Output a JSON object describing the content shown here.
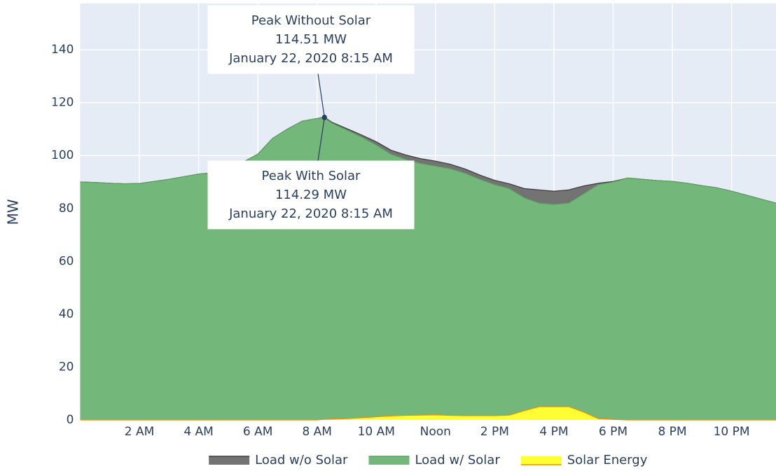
{
  "chart_data": {
    "type": "area",
    "y_axis_label": "MW",
    "x": [
      0,
      0.5,
      1,
      1.5,
      2,
      2.5,
      3,
      3.5,
      4,
      4.5,
      5,
      5.5,
      6,
      6.5,
      7,
      7.5,
      8,
      8.25,
      8.5,
      9,
      9.5,
      10,
      10.5,
      11,
      11.5,
      12,
      12.5,
      13,
      13.5,
      14,
      14.5,
      15,
      15.5,
      16,
      16.5,
      17,
      17.5,
      18,
      18.5,
      19,
      19.5,
      20,
      20.5,
      21,
      21.5,
      22,
      22.5,
      23,
      23.5
    ],
    "series": [
      {
        "name": "Load w/o Solar",
        "color": "#737373",
        "line_color": "#3a3a3a",
        "values": [
          90,
          89.8,
          89.5,
          89.3,
          89.4,
          90.2,
          91,
          92,
          93,
          93.5,
          95,
          97.5,
          100.5,
          106.5,
          110,
          113,
          114,
          114.51,
          112.6,
          110.2,
          107.8,
          105.2,
          102,
          100.2,
          98.8,
          97.9,
          96.7,
          94.9,
          92.6,
          90.6,
          89.3,
          87.5,
          87,
          86.5,
          87,
          88.5,
          89.5,
          90.2,
          91.5,
          91,
          90.5,
          90.2,
          89.5,
          88.6,
          87.8,
          86.5,
          85,
          83.5,
          82
        ]
      },
      {
        "name": "Load w/ Solar",
        "color": "#73b77a",
        "line_color": "#5a9e60",
        "values": [
          90,
          89.8,
          89.5,
          89.3,
          89.4,
          90.2,
          91,
          92,
          93,
          93.5,
          95,
          97.5,
          100.5,
          106.5,
          110,
          113,
          114,
          114.29,
          112.3,
          109.7,
          107,
          104,
          100.5,
          98.5,
          97,
          96,
          95,
          93.3,
          91,
          89,
          87.5,
          84,
          82,
          81.5,
          82,
          85.5,
          89,
          90,
          91.5,
          91,
          90.5,
          90.2,
          89.5,
          88.6,
          87.8,
          86.5,
          85,
          83.5,
          82
        ]
      },
      {
        "name": "Solar Energy",
        "color": "#ffff33",
        "line_color": "#f08c00",
        "values": [
          0,
          0,
          0,
          0,
          0,
          0,
          0,
          0,
          0,
          0,
          0,
          0,
          0,
          0,
          0,
          0,
          0,
          0.22,
          0.3,
          0.5,
          0.8,
          1.2,
          1.5,
          1.7,
          1.8,
          1.9,
          1.7,
          1.6,
          1.6,
          1.6,
          1.8,
          3.5,
          5,
          5,
          5,
          3,
          0.5,
          0.2,
          0,
          0,
          0,
          0,
          0,
          0,
          0,
          0,
          0,
          0,
          0
        ]
      }
    ],
    "xlim": [
      0,
      23.5
    ],
    "xticks": [
      {
        "value": 2,
        "label": "2 AM"
      },
      {
        "value": 4,
        "label": "4 AM"
      },
      {
        "value": 6,
        "label": "6 AM"
      },
      {
        "value": 8,
        "label": "8 AM"
      },
      {
        "value": 10,
        "label": "10 AM"
      },
      {
        "value": 12,
        "label": "Noon"
      },
      {
        "value": 14,
        "label": "2 PM"
      },
      {
        "value": 16,
        "label": "4 PM"
      },
      {
        "value": 18,
        "label": "6 PM"
      },
      {
        "value": 20,
        "label": "8 PM"
      },
      {
        "value": 22,
        "label": "10 PM"
      }
    ],
    "ylim": [
      0,
      157.5
    ],
    "yticks": [
      0,
      20,
      40,
      60,
      80,
      100,
      120,
      140
    ],
    "grid": true,
    "legend_position": "bottom",
    "annotations": [
      {
        "x": 8.25,
        "y": 114.51,
        "text_lines": [
          "Peak Without Solar",
          "114.51 MW",
          "January 22, 2020 8:15 AM"
        ]
      },
      {
        "x": 8.25,
        "y": 114.29,
        "text_lines": [
          "Peak With Solar",
          "114.29 MW",
          "January 22, 2020 8:15 AM"
        ]
      }
    ]
  }
}
